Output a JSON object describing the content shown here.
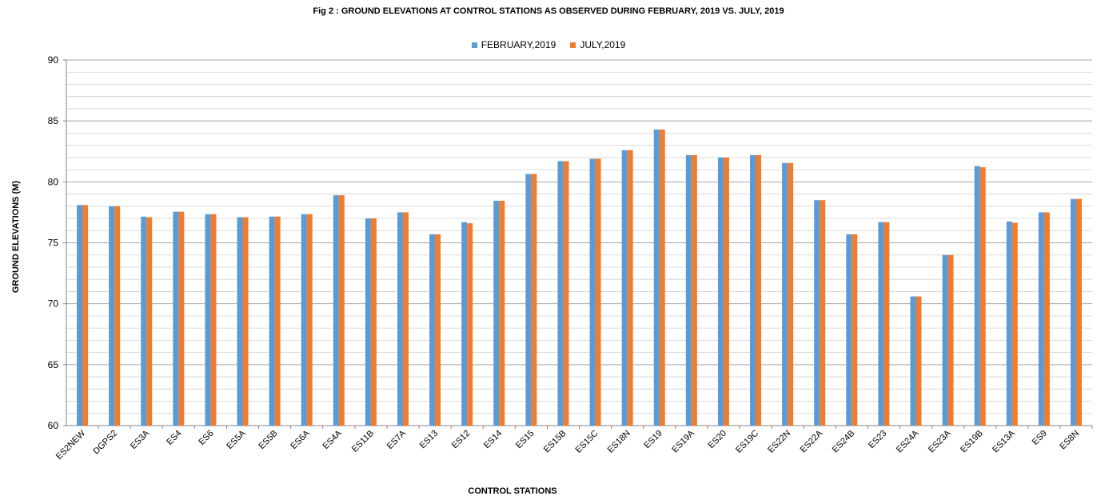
{
  "chart_data": {
    "type": "bar",
    "title": "Fig 2 : GROUND ELEVATIONS AT CONTROL STATIONS AS OBSERVED DURING FEBRUARY, 2019 VS. JULY, 2019",
    "xlabel": "CONTROL STATIONS",
    "ylabel": "GROUND ELEVATIONS (M)",
    "ylim": [
      60,
      90
    ],
    "yticks": [
      60,
      65,
      70,
      75,
      80,
      85,
      90
    ],
    "grid": true,
    "legend_position": "top-center",
    "categories": [
      "ES2NEW",
      "DGPS2",
      "ES3A",
      "ES4",
      "ES6",
      "ES5A",
      "ES5B",
      "ES6A",
      "ES4A",
      "ES11B",
      "ES7A",
      "ES13",
      "ES12",
      "ES14",
      "ES15",
      "ES15B",
      "ES15C",
      "ES18N",
      "ES19",
      "ES19A",
      "ES20",
      "ES19C",
      "ES22N",
      "ES22A",
      "ES24B",
      "ES23",
      "ES24A",
      "ES23A",
      "ES19B",
      "ES13A",
      "ES9",
      "ES8N"
    ],
    "series": [
      {
        "name": "FEBRUARY,2019",
        "color": "#5b9bd5",
        "values": [
          78.1,
          78.0,
          77.15,
          77.55,
          77.35,
          77.1,
          77.15,
          77.35,
          78.9,
          77.0,
          77.5,
          75.7,
          76.7,
          78.45,
          80.65,
          81.7,
          81.9,
          82.6,
          84.3,
          82.2,
          82.0,
          82.2,
          81.55,
          78.5,
          75.7,
          76.7,
          70.6,
          74.0,
          81.3,
          76.75,
          77.5,
          78.6
        ]
      },
      {
        "name": "JULY,2019",
        "color": "#ed7d31",
        "values": [
          78.1,
          78.0,
          77.1,
          77.55,
          77.35,
          77.1,
          77.15,
          77.35,
          78.9,
          77.0,
          77.5,
          75.7,
          76.6,
          78.45,
          80.65,
          81.7,
          81.9,
          82.6,
          84.3,
          82.2,
          82.0,
          82.2,
          81.55,
          78.5,
          75.7,
          76.7,
          70.6,
          74.0,
          81.2,
          76.65,
          77.5,
          78.6
        ]
      }
    ]
  }
}
